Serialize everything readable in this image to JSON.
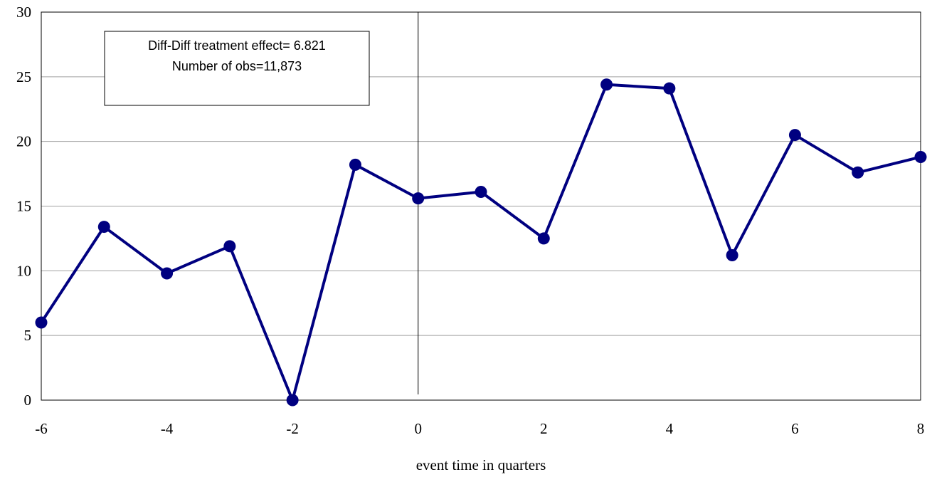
{
  "chart_data": {
    "type": "line",
    "title": "",
    "xlabel": "event time in quarters",
    "ylabel": "",
    "xlim": [
      -6,
      8
    ],
    "ylim": [
      0,
      30
    ],
    "x_ticks": [
      -6,
      -4,
      -2,
      0,
      2,
      4,
      6,
      8
    ],
    "y_ticks": [
      0,
      5,
      10,
      15,
      20,
      25,
      30
    ],
    "grid": "horizontal",
    "reference_line_x": 0,
    "series": [
      {
        "color": "#000080",
        "x": [
          -6,
          -5,
          -4,
          -3,
          -2,
          -1,
          0,
          1,
          2,
          3,
          4,
          5,
          6,
          7,
          8
        ],
        "y": [
          6.0,
          13.4,
          9.8,
          11.9,
          0.0,
          18.2,
          15.6,
          16.1,
          12.5,
          24.4,
          24.1,
          11.2,
          20.5,
          17.6,
          18.8
        ]
      }
    ],
    "annotation": {
      "lines": [
        "Diff-Diff treatment effect= 6.821",
        "Number of obs=11,873"
      ]
    }
  }
}
